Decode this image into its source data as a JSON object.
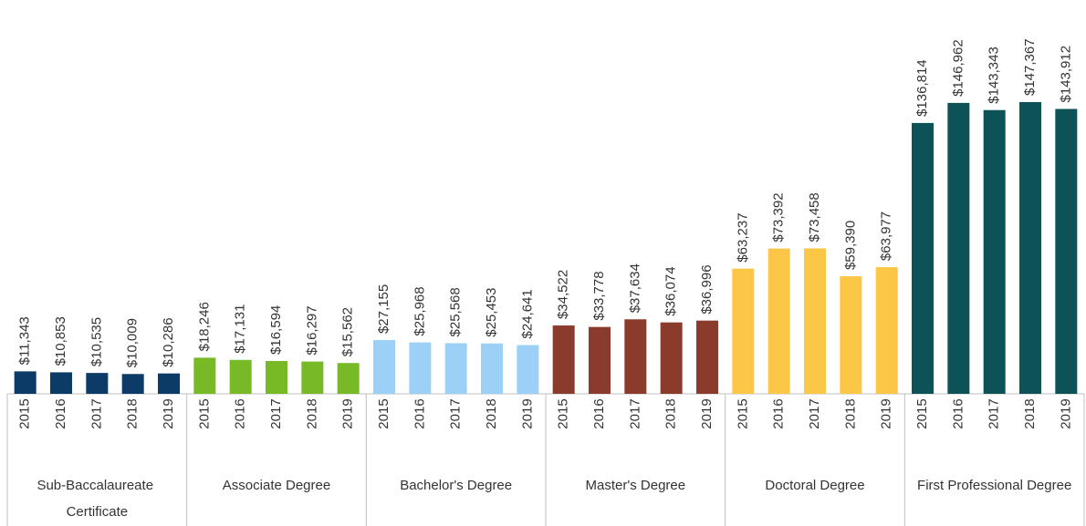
{
  "chart_data": {
    "type": "bar",
    "groups": [
      {
        "name": "Sub-Baccalaureate Certificate",
        "color": "#0b3b66",
        "categories": [
          "2015",
          "2016",
          "2017",
          "2018",
          "2019"
        ],
        "values": [
          11343,
          10853,
          10535,
          10009,
          10286
        ],
        "value_labels": [
          "$11,343",
          "$10,853",
          "$10,535",
          "$10,009",
          "$10,286"
        ]
      },
      {
        "name": "Associate Degree",
        "color": "#78b928",
        "categories": [
          "2015",
          "2016",
          "2017",
          "2018",
          "2019"
        ],
        "values": [
          18246,
          17131,
          16594,
          16297,
          15562
        ],
        "value_labels": [
          "$18,246",
          "$17,131",
          "$16,594",
          "$16,297",
          "$15,562"
        ]
      },
      {
        "name": "Bachelor's Degree",
        "color": "#9dd0f7",
        "categories": [
          "2015",
          "2016",
          "2017",
          "2018",
          "2019"
        ],
        "values": [
          27155,
          25968,
          25568,
          25453,
          24641
        ],
        "value_labels": [
          "$27,155",
          "$25,968",
          "$25,568",
          "$25,453",
          "$24,641"
        ]
      },
      {
        "name": "Master's Degree",
        "color": "#8a3b2c",
        "categories": [
          "2015",
          "2016",
          "2017",
          "2018",
          "2019"
        ],
        "values": [
          34522,
          33778,
          37634,
          36074,
          36996
        ],
        "value_labels": [
          "$34,522",
          "$33,778",
          "$37,634",
          "$36,074",
          "$36,996"
        ]
      },
      {
        "name": "Doctoral Degree",
        "color": "#fcc646",
        "categories": [
          "2015",
          "2016",
          "2017",
          "2018",
          "2019"
        ],
        "values": [
          63237,
          73392,
          73458,
          59390,
          63977
        ],
        "value_labels": [
          "$63,237",
          "$73,392",
          "$73,458",
          "$59,390",
          "$63,977"
        ]
      },
      {
        "name": "First Professional Degree",
        "color": "#0d5257",
        "categories": [
          "2015",
          "2016",
          "2017",
          "2018",
          "2019"
        ],
        "values": [
          136814,
          146962,
          143343,
          147367,
          143912
        ],
        "value_labels": [
          "$136,814",
          "$146,962",
          "$143,343",
          "$147,367",
          "$143,912"
        ]
      }
    ]
  }
}
